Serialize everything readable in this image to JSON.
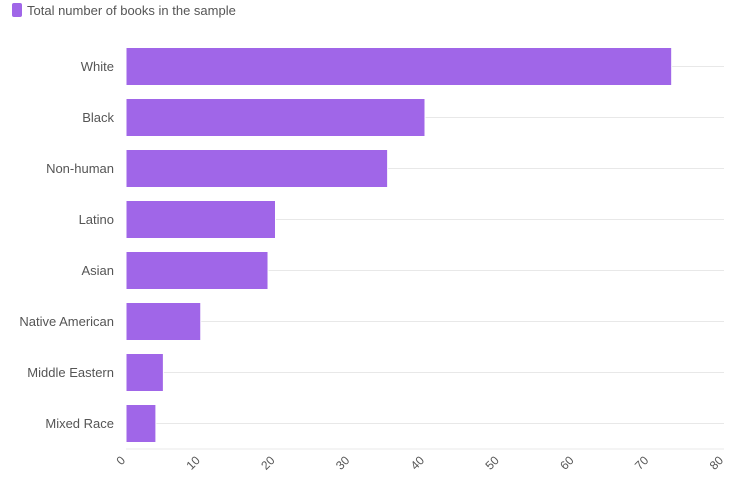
{
  "legend": {
    "label": "Total number of books in the sample",
    "color": "#a066e8"
  },
  "chart_data": {
    "type": "bar",
    "orientation": "horizontal",
    "categories": [
      "White",
      "Black",
      "Non-human",
      "Latino",
      "Asian",
      "Native American",
      "Middle Eastern",
      "Mixed Race"
    ],
    "series": [
      {
        "name": "Total number of books in the sample",
        "values": [
          73,
          40,
          35,
          20,
          19,
          10,
          5,
          4
        ]
      }
    ],
    "xlim": [
      0,
      80
    ],
    "xticks": [
      0,
      10,
      20,
      30,
      40,
      50,
      60,
      70,
      80
    ],
    "grid": true,
    "legend_position": "top-left",
    "bar_color": "#a066e8",
    "grid_color": "#e8e8e8"
  }
}
